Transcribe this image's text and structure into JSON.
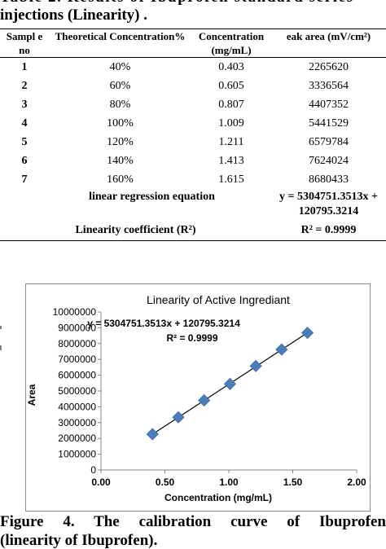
{
  "table": {
    "title_line1": "Table 2. Results of Ibuprofen standard series",
    "title_line2": "injections (Linearity) .",
    "headers": [
      "Sampl e no",
      "Theoretical Concentration%",
      "Concentration (mg/mL)",
      "eak area (mV/cm²)"
    ],
    "rows": [
      [
        "1",
        "40%",
        "0.403",
        "2265620"
      ],
      [
        "2",
        "60%",
        "0.605",
        "3336564"
      ],
      [
        "3",
        "80%",
        "0.807",
        "4407352"
      ],
      [
        "4",
        "100%",
        "1.009",
        "5441529"
      ],
      [
        "5",
        "120%",
        "1.211",
        "6579784"
      ],
      [
        "6",
        "140%",
        "1.413",
        "7624024"
      ],
      [
        "7",
        "160%",
        "1.615",
        "8680433"
      ]
    ],
    "regression_label": "linear regression equation",
    "regression_value_line1": "y = 5304751.3513x +",
    "regression_value_line2": "120795.3214",
    "linearity_label": "Linearity coefficient (R²)",
    "linearity_value": "R² = 0.9999"
  },
  "chart_data": {
    "type": "scatter",
    "title": "Linearity of Active Ingrediant",
    "xlabel": "Concentration (mg/mL)",
    "ylabel": "Area",
    "xlim": [
      0,
      2
    ],
    "ylim": [
      0,
      10000000
    ],
    "x_ticks": [
      "0.00",
      "0.50",
      "1.00",
      "1.50",
      "2.00"
    ],
    "y_ticks": [
      "0",
      "1000000",
      "2000000",
      "3000000",
      "4000000",
      "5000000",
      "6000000",
      "7000000",
      "8000000",
      "9000000",
      "10000000"
    ],
    "grid": false,
    "legend": "none",
    "x": [
      0.403,
      0.605,
      0.807,
      1.009,
      1.211,
      1.413,
      1.615
    ],
    "y": [
      2265620,
      3336564,
      4407352,
      5441529,
      6579784,
      7624024,
      8680433
    ],
    "trendline": {
      "slope": 5304751.3513,
      "intercept": 120795.3214
    },
    "equation_line": "y = 5304751.3513x + 120795.3214",
    "r2_line": "R² = 0.9999",
    "marker_color": "#4a7ebb",
    "line_color": "#000000"
  },
  "caption": {
    "line1": "Figure 4. The calibration curve of Ibuprofen",
    "line2": "(linearity of Ibuprofen)."
  }
}
